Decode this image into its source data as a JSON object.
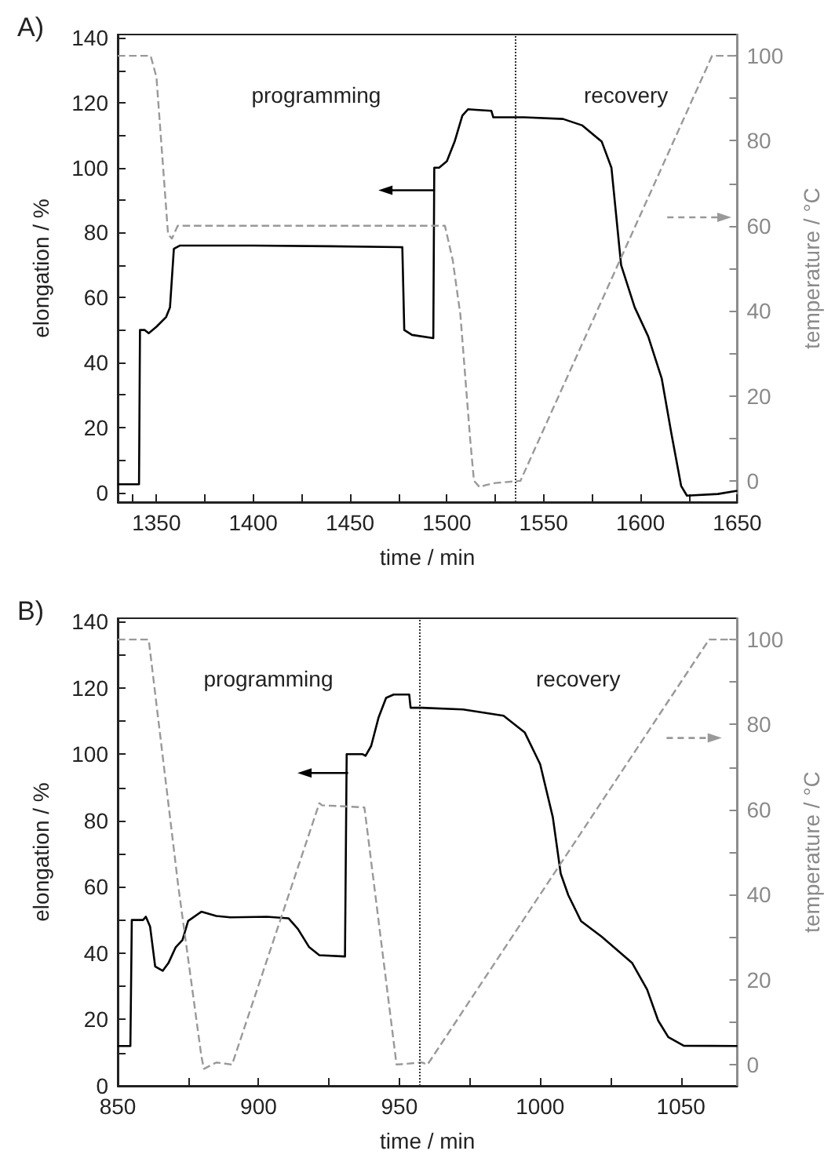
{
  "chart_data": [
    {
      "type": "line",
      "title": "A)",
      "xlabel": "time / min",
      "ylabel": "elongation / %",
      "y2label": "temperature / °C",
      "marker": "none",
      "grid": false,
      "annotations": [
        "programming",
        "recovery"
      ],
      "xlim": [
        1330,
        1650
      ],
      "xticks": [
        {
          "value": 1337.5,
          "label": null
        },
        1350,
        {
          "value": 1375,
          "label": null
        },
        1400,
        {
          "value": 1425,
          "label": null
        },
        1450,
        {
          "value": 1475,
          "label": null
        },
        1500,
        {
          "value": 1525,
          "label": null
        },
        1550,
        {
          "value": 1575,
          "label": null
        },
        1600,
        {
          "value": 1625,
          "label": null
        },
        1650
      ],
      "ylim": [
        -3,
        141
      ],
      "yticks": [
        0,
        {
          "value": 10,
          "label": null
        },
        20,
        {
          "value": 30,
          "label": null
        },
        40,
        {
          "value": 50,
          "label": null
        },
        60,
        {
          "value": 70,
          "label": null
        },
        80,
        {
          "value": 90,
          "label": null
        },
        100,
        {
          "value": 110,
          "label": null
        },
        120,
        {
          "value": 130,
          "label": null
        },
        140
      ],
      "y2lim": [
        -5,
        105
      ],
      "y2ticks": [
        0,
        {
          "value": 10,
          "label": null
        },
        20,
        {
          "value": 30,
          "label": null
        },
        40,
        {
          "value": 50,
          "label": null
        },
        60,
        {
          "value": 70,
          "label": null
        },
        80,
        {
          "value": 90,
          "label": null
        },
        100
      ],
      "ref_lines": [
        {
          "axis": "x",
          "value": 1535,
          "color": "#333333",
          "line_style": "dotted"
        }
      ],
      "series": [
        {
          "color": "#000000",
          "line_style": "solid",
          "x": [
            1330,
            1341,
            1341.5,
            1344,
            1346,
            1350,
            1355,
            1357,
            1359,
            1362,
            1400,
            1440,
            1477,
            1478,
            1482,
            1493,
            1493.5,
            1496,
            1500,
            1504,
            1508,
            1511,
            1515,
            1523,
            1524,
            1540,
            1560,
            1570,
            1580,
            1585,
            1590,
            1597,
            1604,
            1611,
            1616,
            1621,
            1624,
            1640,
            1650
          ],
          "values": [
            2.5,
            2.5,
            50,
            50,
            49,
            51,
            54,
            57,
            75,
            76,
            76,
            75.8,
            75.5,
            50,
            48.5,
            47.5,
            100,
            100,
            102,
            108,
            116,
            118,
            117.8,
            117.5,
            115.5,
            115.5,
            115,
            113,
            108,
            100,
            70,
            57,
            48,
            35,
            18,
            2,
            -1,
            -0.5,
            0.5
          ]
        },
        {
          "color": "#999999",
          "line_style": "dashed",
          "axis": "y2",
          "x": [
            1330,
            1347,
            1350,
            1356,
            1358,
            1361,
            1499,
            1503,
            1507,
            1512,
            1514,
            1517,
            1520,
            1525,
            1538,
            1637,
            1650
          ],
          "values": [
            100,
            100,
            95,
            58,
            57,
            60,
            60,
            52,
            39,
            10,
            0,
            -1.5,
            -1,
            -0.5,
            0,
            100,
            100
          ]
        }
      ]
    },
    {
      "type": "line",
      "title": "B)",
      "xlabel": "time / min",
      "ylabel": "elongation / %",
      "y2label": "temperature / °C",
      "marker": "none",
      "grid": false,
      "annotations": [
        "programming",
        "recovery"
      ],
      "xlim": [
        850,
        1070
      ],
      "xticks": [
        850,
        {
          "value": 875,
          "label": null
        },
        900,
        {
          "value": 925,
          "label": null
        },
        950,
        {
          "value": 975,
          "label": null
        },
        1000,
        {
          "value": 1025,
          "label": null
        },
        1050
      ],
      "ylim": [
        0,
        141
      ],
      "yticks": [
        0,
        {
          "value": 10,
          "label": null
        },
        20,
        {
          "value": 30,
          "label": null
        },
        40,
        {
          "value": 50,
          "label": null
        },
        60,
        {
          "value": 70,
          "label": null
        },
        80,
        {
          "value": 90,
          "label": null
        },
        100,
        {
          "value": 110,
          "label": null
        },
        120,
        {
          "value": 130,
          "label": null
        },
        140
      ],
      "y2lim": [
        -5,
        105
      ],
      "y2ticks": [
        0,
        {
          "value": 10,
          "label": null
        },
        20,
        {
          "value": 30,
          "label": null
        },
        40,
        {
          "value": 50,
          "label": null
        },
        60,
        {
          "value": 70,
          "label": null
        },
        80,
        {
          "value": 90,
          "label": null
        },
        100
      ],
      "ref_lines": [
        {
          "axis": "x",
          "value": 957,
          "color": "#333333",
          "line_style": "dotted"
        }
      ],
      "series": [
        {
          "color": "#000000",
          "line_style": "solid",
          "x": [
            850,
            854.5,
            855,
            859,
            860,
            861.5,
            863.3,
            866,
            868,
            870.6,
            873,
            875,
            879.7,
            885,
            890,
            903,
            910.7,
            914,
            918,
            921.6,
            930.7,
            931.3,
            937,
            938,
            940,
            942.6,
            945.3,
            948,
            953.5,
            954,
            958,
            972.6,
            987,
            994.5,
            1000,
            1004.5,
            1007.3,
            1010,
            1014.5,
            1021.8,
            1032.7,
            1038,
            1041.9,
            1045.5,
            1051,
            1070
          ],
          "values": [
            12,
            12,
            50,
            50,
            51,
            48,
            36,
            34.7,
            37,
            41.8,
            44,
            49.7,
            52.5,
            51.2,
            50.8,
            51,
            50.5,
            47.3,
            41.8,
            39.4,
            39,
            100,
            100,
            99.5,
            102.5,
            111,
            117,
            118,
            118,
            114,
            114,
            113.5,
            111.6,
            106.6,
            97,
            81,
            64,
            57.5,
            49.7,
            45,
            37,
            29,
            19.7,
            14.7,
            12.1,
            12
          ]
        },
        {
          "color": "#999999",
          "line_style": "dashed",
          "axis": "y2",
          "x": [
            850,
            861,
            871.5,
            879.7,
            880.6,
            885,
            890.6,
            921.6,
            922.5,
            937.6,
            949,
            958,
            960,
            1060,
            1070
          ],
          "values": [
            100,
            100,
            42,
            2,
            -1,
            0.5,
            0,
            61.5,
            61,
            60.5,
            0,
            0.5,
            0,
            100,
            100
          ]
        }
      ]
    }
  ]
}
